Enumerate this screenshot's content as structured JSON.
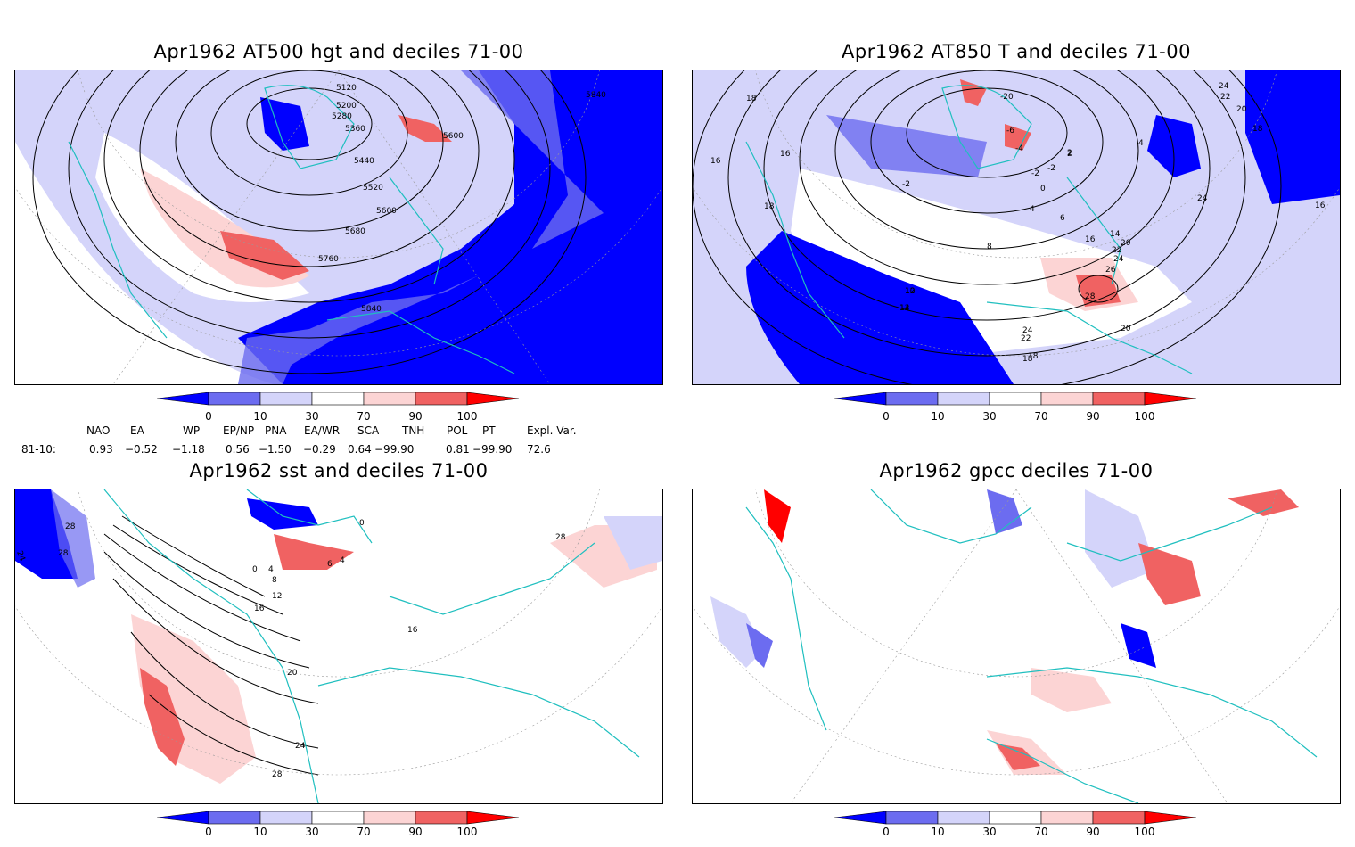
{
  "panels": [
    {
      "title": "Apr1962 AT500 hgt and deciles 71-00",
      "contour_labels": [
        "5120",
        "5200",
        "5280",
        "5360",
        "5440",
        "5520",
        "5600",
        "5680",
        "5760",
        "5840",
        "5600",
        "5840"
      ]
    },
    {
      "title": "Apr1962 AT850 T and deciles 71-00",
      "contour_labels": [
        "18",
        "16",
        "16",
        "18",
        "-2",
        "-2",
        "0",
        "2",
        "4",
        "6",
        "8",
        "10",
        "12",
        "14",
        "16",
        "18",
        "20",
        "22",
        "24",
        "26",
        "28",
        "24",
        "22",
        "20",
        "18",
        "-20",
        "-6",
        "-4",
        "-2",
        "2",
        "4",
        "24",
        "22",
        "20",
        "18",
        "16",
        "24",
        "12",
        "14"
      ]
    },
    {
      "title": "Apr1962 sst and deciles 71-00",
      "contour_labels": [
        "24",
        "28",
        "28",
        "0",
        "4",
        "8",
        "12",
        "16",
        "20",
        "24",
        "28",
        "4",
        "6",
        "0",
        "16",
        "28"
      ]
    },
    {
      "title": "Apr1962 gpcc deciles 71-00",
      "contour_labels": []
    }
  ],
  "colorbar": {
    "ticks": [
      "0",
      "10",
      "30",
      "70",
      "90",
      "100"
    ],
    "colors": [
      "#0000ff",
      "#6c6cf0",
      "#d4d4fa",
      "#ffffff",
      "#fcd4d4",
      "#f06262",
      "#ff0000"
    ]
  },
  "indices": {
    "headers": [
      "NAO",
      "EA",
      "WP",
      "EP/NP",
      "PNA",
      "EA/WR",
      "SCA",
      "TNH",
      "POL",
      "PT",
      "Expl. Var."
    ],
    "row_label": "81-10:",
    "values": [
      "0.93",
      "−0.52",
      "−1.18",
      "0.56",
      "−1.50",
      "−0.29",
      "0.64",
      "−99.90",
      "0.81",
      "−99.90",
      "72.6"
    ]
  },
  "colors": {
    "coast": "#1fbfbf",
    "contour": "#000000",
    "grid": "#9a9a9a"
  }
}
